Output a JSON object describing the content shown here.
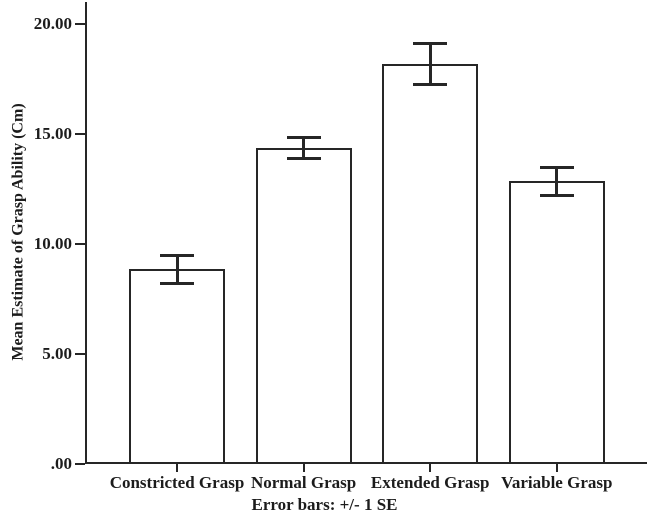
{
  "figure": {
    "background": "#ffffff",
    "line_color": "#262626",
    "text_color": "#1c1c1c"
  },
  "chart_data": {
    "type": "bar",
    "title": "",
    "categories": [
      "Constricted Grasp",
      "Normal Grasp",
      "Extended Grasp",
      "Variable Grasp"
    ],
    "values": [
      8.85,
      14.35,
      18.2,
      12.85
    ],
    "errors": [
      0.65,
      0.5,
      0.95,
      0.65
    ],
    "ylabel": "Mean Estimate of Grasp Ability (Cm)",
    "xlabel": "",
    "caption": "Error bars: +/- 1 SE",
    "ylim": [
      0,
      21
    ],
    "yticks": [
      0,
      5,
      10,
      15,
      20
    ],
    "ytick_labels": [
      ".00",
      "5.00",
      "10.00",
      "15.00",
      "20.00"
    ],
    "bar_fill": "#ffffff",
    "grid": false,
    "legend": false
  }
}
